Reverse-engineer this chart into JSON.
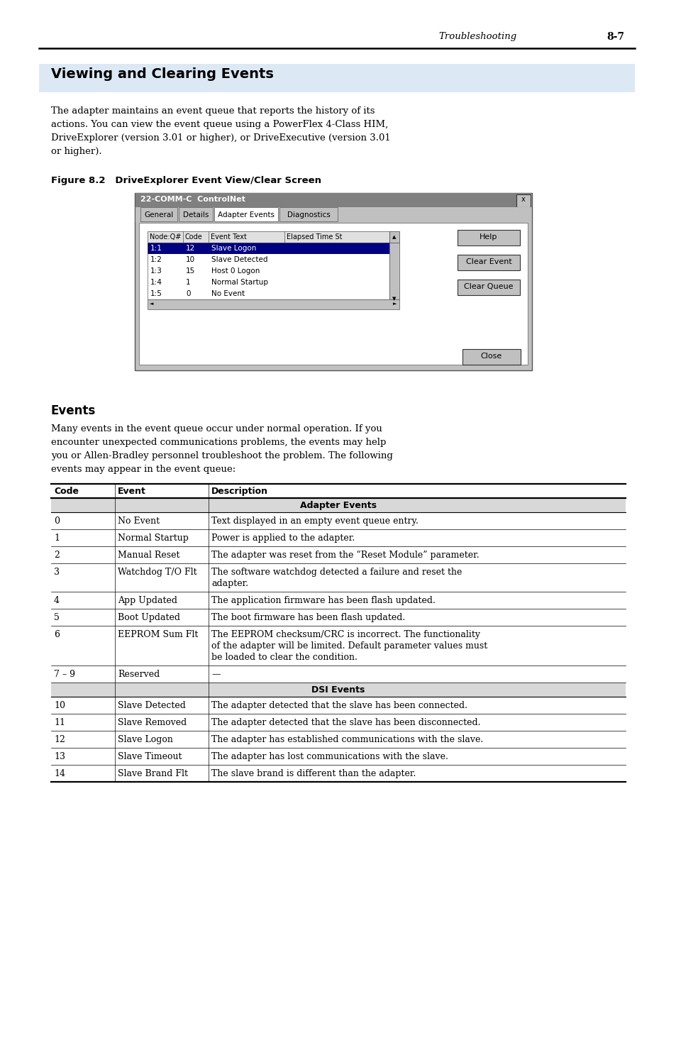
{
  "page_header_left": "Troubleshooting",
  "page_header_right": "8-7",
  "section_title": "Viewing and Clearing Events",
  "section_title_bg": "#dce9f5",
  "body_text1": "The adapter maintains an event queue that reports the history of its\nactions. You can view the event queue using a PowerFlex 4-Class HIM,\nDriveExplorer (version 3.01 or higher), or DriveExecutive (version 3.01\nor higher).",
  "figure_caption": "Figure 8.2   DriveExplorer Event View/Clear Screen",
  "dialog_title": "22-COMM-C  ControlNet",
  "dialog_tabs": [
    "General",
    "Details",
    "Adapter Events",
    "Diagnostics"
  ],
  "table_headers": [
    "Node:Q#",
    "Code",
    "Event Text",
    "Elapsed Time St"
  ],
  "table_rows": [
    [
      "1:1",
      "12",
      "Slave Logon"
    ],
    [
      "1:2",
      "10",
      "Slave Detected"
    ],
    [
      "1:3",
      "15",
      "Host 0 Logon"
    ],
    [
      "1:4",
      "1",
      "Normal Startup"
    ],
    [
      "1:5",
      "0",
      "No Event"
    ]
  ],
  "dialog_buttons": [
    "Help",
    "Clear Event",
    "Clear Queue",
    "Close"
  ],
  "events_subtitle": "Events",
  "events_body": "Many events in the event queue occur under normal operation. If you\nencounter unexpected communications problems, the events may help\nyou or Allen-Bradley personnel troubleshoot the problem. The following\nevents may appear in the event queue:",
  "main_table_headers": [
    "Code",
    "Event",
    "Description"
  ],
  "adapter_events_header": "Adapter Events",
  "dsi_events_header": "DSI Events",
  "adapter_rows": [
    [
      "0",
      "No Event",
      "Text displayed in an empty event queue entry."
    ],
    [
      "1",
      "Normal Startup",
      "Power is applied to the adapter."
    ],
    [
      "2",
      "Manual Reset",
      "The adapter was reset from the “Reset Module” parameter."
    ],
    [
      "3",
      "Watchdog T/O Flt",
      "The software watchdog detected a failure and reset the\nadapter."
    ],
    [
      "4",
      "App Updated",
      "The application firmware has been flash updated."
    ],
    [
      "5",
      "Boot Updated",
      "The boot firmware has been flash updated."
    ],
    [
      "6",
      "EEPROM Sum Flt",
      "The EEPROM checksum/CRC is incorrect. The functionality\nof the adapter will be limited. Default parameter values must\nbe loaded to clear the condition."
    ],
    [
      "7 – 9",
      "Reserved",
      "—"
    ]
  ],
  "dsi_rows": [
    [
      "10",
      "Slave Detected",
      "The adapter detected that the slave has been connected."
    ],
    [
      "11",
      "Slave Removed",
      "The adapter detected that the slave has been disconnected."
    ],
    [
      "12",
      "Slave Logon",
      "The adapter has established communications with the slave."
    ],
    [
      "13",
      "Slave Timeout",
      "The adapter has lost communications with the slave."
    ],
    [
      "14",
      "Slave Brand Flt",
      "The slave brand is different than the adapter."
    ]
  ],
  "bg_color": "#ffffff",
  "section_header_bg": "#dce9f5",
  "table_subhdr_bg": "#d8d8d8",
  "dialog_gray": "#c0c0c0",
  "dialog_titlebar": "#808080"
}
